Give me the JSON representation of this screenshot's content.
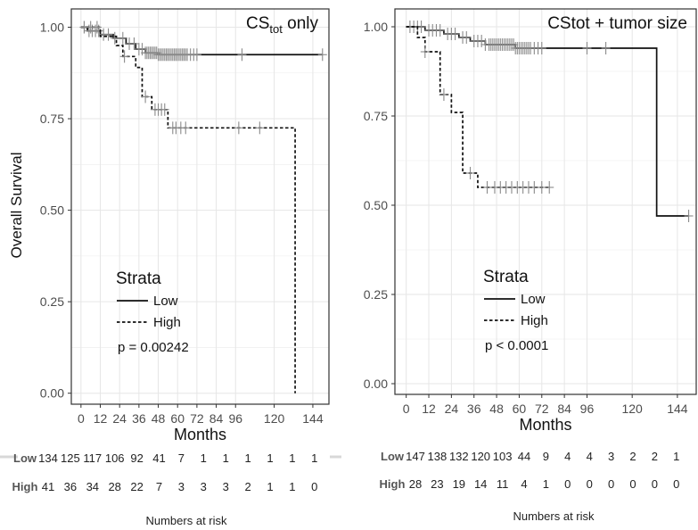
{
  "chart_data": [
    {
      "type": "line",
      "chart_kind": "kaplan-meier survival curve",
      "title_main": "CS",
      "title_sub": "tot",
      "title_tail": " only",
      "ylabel": "Overall Survival",
      "xlabel": "Months",
      "xlim": [
        -6,
        154
      ],
      "ylim": [
        -0.03,
        1.05
      ],
      "x_ticks": [
        0,
        12,
        24,
        36,
        48,
        60,
        72,
        84,
        96,
        120,
        144
      ],
      "y_ticks": [
        0,
        0.25,
        0.5,
        0.75,
        1
      ],
      "y_tick_labels": [
        "0.00",
        "0.25",
        "0.50",
        "0.75",
        "1.00"
      ],
      "grid": true,
      "legend": {
        "title": "Strata",
        "placement": "bottom-left",
        "items": [
          {
            "label": "Low",
            "style": "solid"
          },
          {
            "label": "High",
            "style": "dashed"
          }
        ]
      },
      "annotation": "p = 0.00242",
      "series": [
        {
          "name": "Low",
          "style": "solid",
          "steps": [
            [
              0,
              1.0
            ],
            [
              4,
              0.99
            ],
            [
              12,
              0.98
            ],
            [
              20,
              0.97
            ],
            [
              28,
              0.955
            ],
            [
              34,
              0.94
            ],
            [
              40,
              0.93
            ],
            [
              48,
              0.925
            ],
            [
              150,
              0.925
            ]
          ],
          "censor_x": [
            2,
            5,
            7,
            9,
            11,
            14,
            17,
            21,
            26,
            30,
            33,
            36,
            38,
            40,
            41,
            42,
            43,
            44,
            45,
            46,
            47,
            48,
            49,
            50,
            51,
            52,
            53,
            54,
            55,
            56,
            57,
            58,
            59,
            60,
            61,
            62,
            63,
            64,
            65,
            66,
            68,
            70,
            72,
            100,
            150
          ]
        },
        {
          "name": "High",
          "style": "dashed",
          "steps": [
            [
              0,
              1.0
            ],
            [
              12,
              0.975
            ],
            [
              22,
              0.95
            ],
            [
              26,
              0.92
            ],
            [
              34,
              0.89
            ],
            [
              38,
              0.81
            ],
            [
              44,
              0.775
            ],
            [
              54,
              0.725
            ],
            [
              133,
              0.725
            ],
            [
              133,
              0.0
            ]
          ],
          "censor_x": [
            2,
            6,
            10,
            27,
            40,
            46,
            48,
            50,
            52,
            57,
            59,
            62,
            65,
            98,
            111
          ]
        }
      ]
    },
    {
      "type": "line",
      "chart_kind": "kaplan-meier survival curve",
      "title": "CStot + tumor size",
      "xlabel": "Months",
      "xlim": [
        -6,
        154
      ],
      "ylim": [
        -0.03,
        1.05
      ],
      "x_ticks": [
        0,
        12,
        24,
        36,
        48,
        60,
        72,
        84,
        96,
        120,
        144
      ],
      "y_ticks": [
        0,
        0.25,
        0.5,
        0.75,
        1
      ],
      "y_tick_labels": [
        "0.00",
        "0.25",
        "0.50",
        "0.75",
        "1.00"
      ],
      "grid": true,
      "legend": {
        "title": "Strata",
        "placement": "bottom-left",
        "items": [
          {
            "label": "Low",
            "style": "solid"
          },
          {
            "label": "High",
            "style": "dashed"
          }
        ]
      },
      "annotation": "p < 0.0001",
      "series": [
        {
          "name": "Low",
          "style": "solid",
          "steps": [
            [
              0,
              1.0
            ],
            [
              10,
              0.99
            ],
            [
              20,
              0.98
            ],
            [
              28,
              0.97
            ],
            [
              34,
              0.96
            ],
            [
              42,
              0.95
            ],
            [
              58,
              0.94
            ],
            [
              133,
              0.94
            ],
            [
              133,
              0.47
            ],
            [
              150,
              0.47
            ]
          ],
          "censor_x": [
            2,
            4,
            6,
            8,
            12,
            14,
            16,
            18,
            22,
            24,
            26,
            30,
            32,
            36,
            38,
            40,
            42,
            44,
            45,
            46,
            47,
            48,
            49,
            50,
            51,
            52,
            53,
            54,
            55,
            56,
            57,
            58,
            59,
            60,
            61,
            62,
            63,
            64,
            65,
            66,
            68,
            70,
            72,
            96,
            106,
            150
          ]
        },
        {
          "name": "High",
          "style": "dashed",
          "steps": [
            [
              0,
              1.0
            ],
            [
              6,
              0.97
            ],
            [
              10,
              0.93
            ],
            [
              18,
              0.81
            ],
            [
              24,
              0.76
            ],
            [
              30,
              0.59
            ],
            [
              38,
              0.55
            ],
            [
              76,
              0.55
            ]
          ],
          "censor_x": [
            10,
            20,
            34,
            43,
            47,
            50,
            53,
            56,
            59,
            62,
            65,
            68,
            72,
            76
          ]
        }
      ]
    }
  ],
  "risk_tables": [
    {
      "title": "Numbers at risk",
      "rows": [
        {
          "label": "Low",
          "values": [
            "134",
            "125",
            "117",
            "106",
            "92",
            "41",
            "7",
            "1",
            "1",
            "1",
            "1",
            "1",
            "1"
          ]
        },
        {
          "label": "High",
          "values": [
            "41",
            "36",
            "34",
            "28",
            "22",
            "7",
            "3",
            "3",
            "3",
            "2",
            "1",
            "1",
            "0"
          ]
        }
      ]
    },
    {
      "title": "Numbers at risk",
      "rows": [
        {
          "label": "Low",
          "values": [
            "147",
            "138",
            "132",
            "120",
            "103",
            "44",
            "9",
            "4",
            "4",
            "3",
            "2",
            "2",
            "1"
          ]
        },
        {
          "label": "High",
          "values": [
            "28",
            "23",
            "19",
            "14",
            "11",
            "4",
            "1",
            "0",
            "0",
            "0",
            "0",
            "0",
            "0"
          ]
        }
      ]
    }
  ],
  "colors": {
    "curve": "#111111",
    "censor": "#8a8a8a",
    "grid": "#e6e6e6",
    "panel_border": "#333333",
    "axis_text": "#4d4d4d",
    "risk_label": "#555555"
  }
}
